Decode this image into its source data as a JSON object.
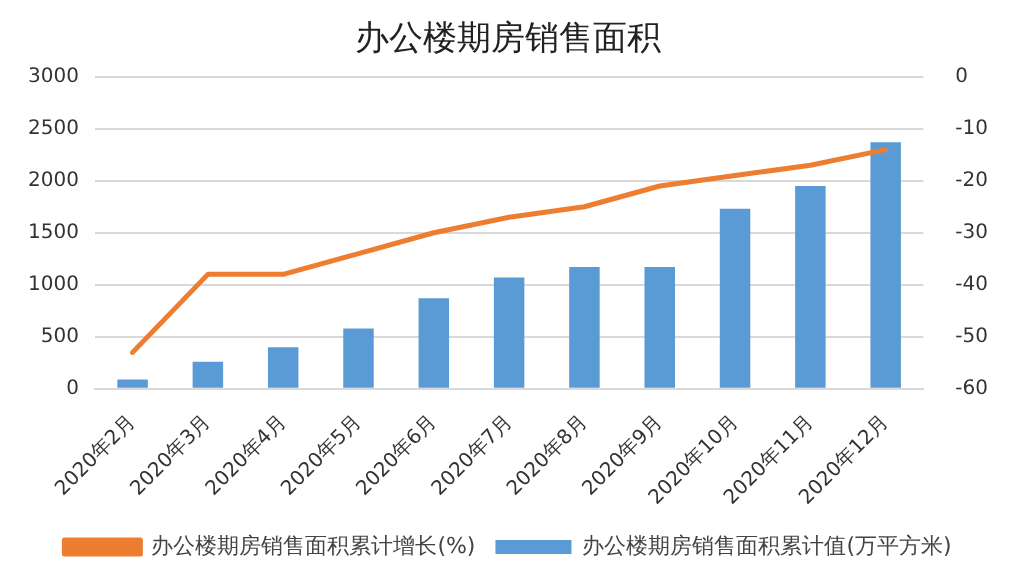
{
  "chart_data": {
    "type": "bar",
    "title": "办公楼期房销售面积",
    "categories": [
      "2020年2月",
      "2020年3月",
      "2020年4月",
      "2020年5月",
      "2020年6月",
      "2020年7月",
      "2020年8月",
      "2020年9月",
      "2020年10月",
      "2020年11月",
      "2020年12月"
    ],
    "series": [
      {
        "name": "办公楼期房销售面积累计值(万平方米)",
        "color": "#5b9bd5",
        "values": [
          90,
          260,
          400,
          580,
          870,
          1070,
          1170,
          1170,
          1730,
          1950,
          2370
        ]
      },
      {
        "name": "办公楼期房销售面积累计增长(%)",
        "type": "line",
        "axis": "y2",
        "color": "#ed7d31",
        "values": [
          -53,
          -38,
          -38,
          -34,
          -30,
          -27,
          -25,
          -21,
          -19,
          -17,
          -14
        ]
      }
    ],
    "ylim": [
      0,
      3000
    ],
    "yticks": [
      0,
      500,
      1000,
      1500,
      2000,
      2500,
      3000
    ],
    "y2lim": [
      -60,
      0
    ],
    "y2ticks": [
      -60,
      -50,
      -40,
      -30,
      -20,
      -10,
      0
    ],
    "grid": "y",
    "legend": "bottom",
    "marker": "none"
  }
}
